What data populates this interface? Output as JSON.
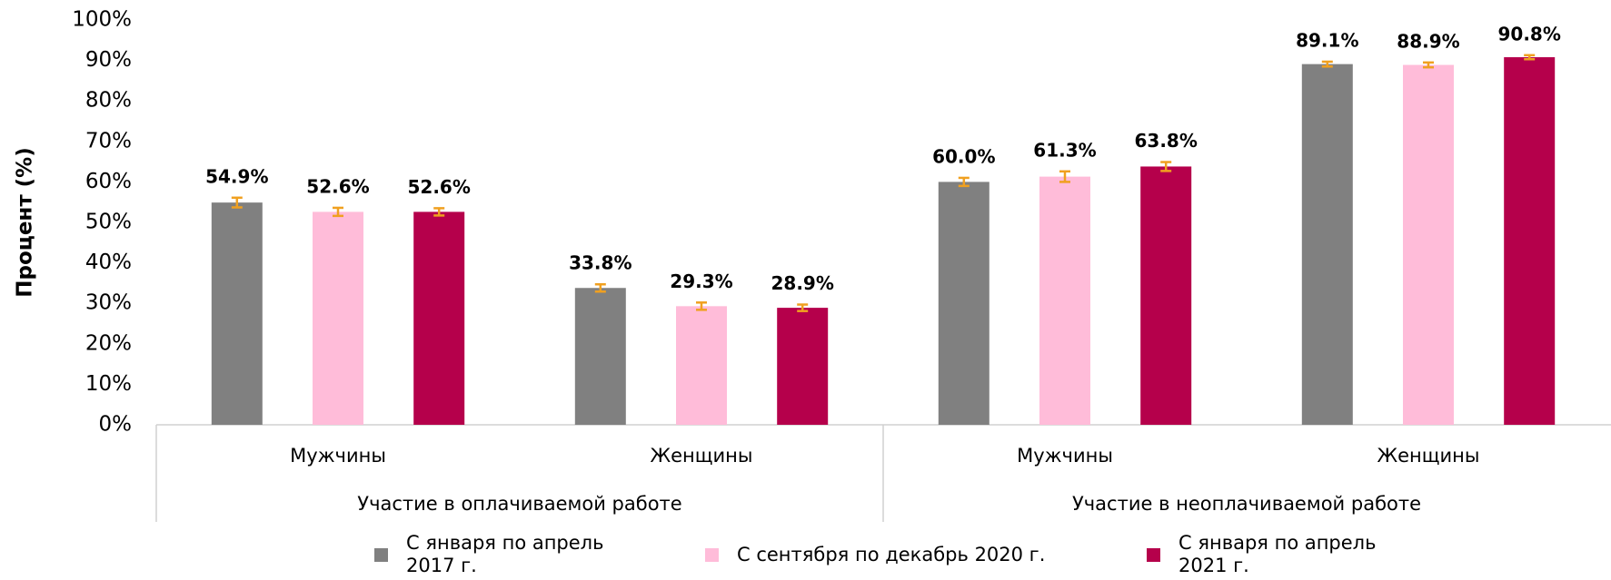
{
  "chart_data": {
    "type": "bar",
    "ylabel": "Процент (%)",
    "groups": [
      {
        "name": "Участие в оплачиваемой работе",
        "categories": [
          "Мужчины",
          "Женщины"
        ]
      },
      {
        "name": "Участие в неоплачиваемой работе",
        "categories": [
          "Мужчины",
          "Женщины"
        ]
      }
    ],
    "series": [
      {
        "name": "С января по апрель 2017 г.",
        "color": "#808080",
        "values": [
          54.9,
          33.8,
          60.0,
          89.1
        ],
        "value_labels": [
          "54.9%",
          "33.8%",
          "60.0%",
          "89.1%"
        ],
        "errors": [
          1.2,
          0.9,
          1.0,
          0.6
        ]
      },
      {
        "name": "С сентября по декабрь 2020 г.",
        "color": "#ffbcd9",
        "values": [
          52.6,
          29.3,
          61.3,
          88.9
        ],
        "value_labels": [
          "52.6%",
          "29.3%",
          "61.3%",
          "88.9%"
        ],
        "errors": [
          1.0,
          0.9,
          1.3,
          0.6
        ]
      },
      {
        "name": "С января по апрель 2021 г.",
        "color": "#b5004b",
        "values": [
          52.6,
          28.9,
          63.8,
          90.8
        ],
        "value_labels": [
          "52.6%",
          "28.9%",
          "63.8%",
          "90.8%"
        ],
        "errors": [
          0.9,
          0.8,
          1.1,
          0.5
        ]
      }
    ],
    "error_color": "#f0a020",
    "ylim": [
      0,
      100
    ],
    "yticks": [
      {
        "value": 0,
        "label": "0%"
      },
      {
        "value": 10,
        "label": "10%"
      },
      {
        "value": 20,
        "label": "20%"
      },
      {
        "value": 30,
        "label": "30%"
      },
      {
        "value": 40,
        "label": "40%"
      },
      {
        "value": 50,
        "label": "50%"
      },
      {
        "value": 60,
        "label": "60%"
      },
      {
        "value": 70,
        "label": "70%"
      },
      {
        "value": 80,
        "label": "80%"
      },
      {
        "value": 90,
        "label": "90%"
      },
      {
        "value": 100,
        "label": "100%"
      }
    ],
    "grid": false
  }
}
